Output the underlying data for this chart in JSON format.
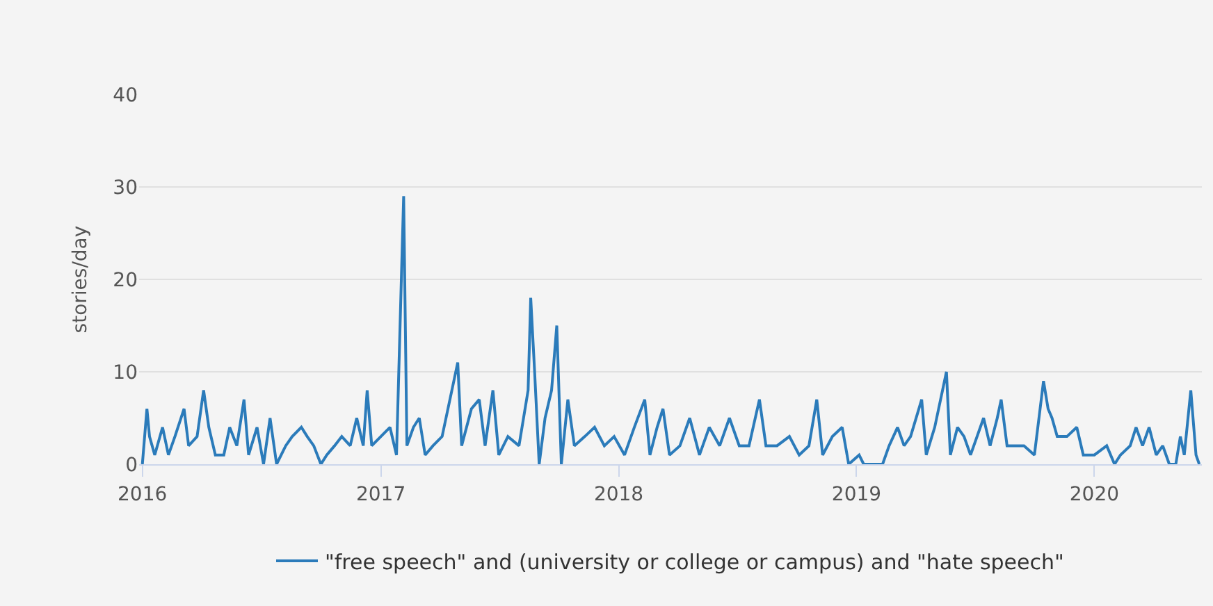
{
  "chart_data": {
    "type": "line",
    "ylabel": "stories/day",
    "x": [
      "2016-01-01",
      "2016-01-08",
      "2016-01-12",
      "2016-01-20",
      "2016-02-01",
      "2016-02-10",
      "2016-02-20",
      "2016-03-05",
      "2016-03-12",
      "2016-03-25",
      "2016-04-04",
      "2016-04-12",
      "2016-04-22",
      "2016-05-05",
      "2016-05-14",
      "2016-05-25",
      "2016-06-05",
      "2016-06-12",
      "2016-06-25",
      "2016-07-05",
      "2016-07-15",
      "2016-07-25",
      "2016-08-08",
      "2016-08-18",
      "2016-09-01",
      "2016-09-10",
      "2016-09-20",
      "2016-10-01",
      "2016-10-10",
      "2016-10-22",
      "2016-11-02",
      "2016-11-15",
      "2016-11-25",
      "2016-12-05",
      "2016-12-11",
      "2016-12-18",
      "2017-01-01",
      "2017-01-15",
      "2017-01-25",
      "2017-02-05",
      "2017-02-10",
      "2017-02-20",
      "2017-03-01",
      "2017-03-10",
      "2017-03-22",
      "2017-04-05",
      "2017-04-20",
      "2017-04-29",
      "2017-05-05",
      "2017-05-20",
      "2017-06-01",
      "2017-06-10",
      "2017-06-22",
      "2017-07-01",
      "2017-07-15",
      "2017-08-01",
      "2017-08-15",
      "2017-08-19",
      "2017-08-25",
      "2017-09-01",
      "2017-09-10",
      "2017-09-20",
      "2017-09-28",
      "2017-10-05",
      "2017-10-15",
      "2017-10-25",
      "2017-11-10",
      "2017-11-25",
      "2017-12-10",
      "2017-12-25",
      "2018-01-10",
      "2018-01-25",
      "2018-02-10",
      "2018-02-18",
      "2018-03-01",
      "2018-03-10",
      "2018-03-20",
      "2018-04-05",
      "2018-04-20",
      "2018-05-05",
      "2018-05-20",
      "2018-06-05",
      "2018-06-20",
      "2018-07-05",
      "2018-07-20",
      "2018-08-05",
      "2018-08-15",
      "2018-09-01",
      "2018-09-20",
      "2018-10-05",
      "2018-10-20",
      "2018-11-01",
      "2018-11-10",
      "2018-11-25",
      "2018-12-10",
      "2018-12-20",
      "2019-01-05",
      "2019-01-12",
      "2019-02-10",
      "2019-02-20",
      "2019-03-05",
      "2019-03-15",
      "2019-03-25",
      "2019-04-11",
      "2019-04-18",
      "2019-05-01",
      "2019-05-19",
      "2019-05-25",
      "2019-06-05",
      "2019-06-15",
      "2019-06-25",
      "2019-07-05",
      "2019-07-15",
      "2019-07-25",
      "2019-08-05",
      "2019-08-11",
      "2019-08-20",
      "2019-09-01",
      "2019-09-15",
      "2019-10-01",
      "2019-10-15",
      "2019-10-22",
      "2019-10-28",
      "2019-11-05",
      "2019-11-20",
      "2019-12-05",
      "2019-12-15",
      "2020-01-01",
      "2020-01-20",
      "2020-02-01",
      "2020-02-10",
      "2020-02-25",
      "2020-03-05",
      "2020-03-15",
      "2020-03-25",
      "2020-04-05",
      "2020-04-15",
      "2020-04-25",
      "2020-05-05",
      "2020-05-12",
      "2020-05-18",
      "2020-05-28",
      "2020-06-05",
      "2020-06-10"
    ],
    "series": [
      {
        "name": "\"free speech\" and (university or college or campus) and \"hate speech\"",
        "color": "#2b7bba",
        "values": [
          0,
          6,
          3,
          1,
          4,
          1,
          3,
          6,
          2,
          3,
          8,
          4,
          1,
          1,
          4,
          2,
          7,
          1,
          4,
          0,
          5,
          0,
          2,
          3,
          4,
          3,
          2,
          0,
          1,
          2,
          3,
          2,
          5,
          2,
          8,
          2,
          3,
          4,
          1,
          29,
          2,
          4,
          5,
          1,
          2,
          3,
          8,
          11,
          2,
          6,
          7,
          2,
          8,
          1,
          3,
          2,
          8,
          18,
          10,
          0,
          5,
          8,
          15,
          0,
          7,
          2,
          3,
          4,
          2,
          3,
          1,
          4,
          7,
          1,
          4,
          6,
          1,
          2,
          5,
          1,
          4,
          2,
          5,
          2,
          2,
          7,
          2,
          2,
          3,
          1,
          2,
          7,
          1,
          3,
          4,
          0,
          1,
          0,
          0,
          2,
          4,
          2,
          3,
          7,
          1,
          4,
          10,
          1,
          4,
          3,
          1,
          3,
          5,
          2,
          5,
          7,
          2,
          2,
          2,
          1,
          9,
          6,
          5,
          3,
          3,
          4,
          1,
          1,
          2,
          0,
          1,
          2,
          4,
          2,
          4,
          1,
          2,
          0,
          0,
          3,
          1,
          8,
          1,
          0
        ]
      }
    ],
    "xlim": [
      "2015-12-27",
      "2020-06-14"
    ],
    "xticks": [
      {
        "value": "2016-01-01",
        "label": "2016"
      },
      {
        "value": "2017-01-01",
        "label": "2017"
      },
      {
        "value": "2018-01-01",
        "label": "2018"
      },
      {
        "value": "2019-01-01",
        "label": "2019"
      },
      {
        "value": "2020-01-01",
        "label": "2020"
      }
    ],
    "ylim": [
      0,
      40
    ],
    "yticks": [
      0,
      10,
      20,
      30,
      40
    ],
    "grid": "y",
    "legend": "bottom",
    "marker": "none",
    "line_style": "solid"
  }
}
